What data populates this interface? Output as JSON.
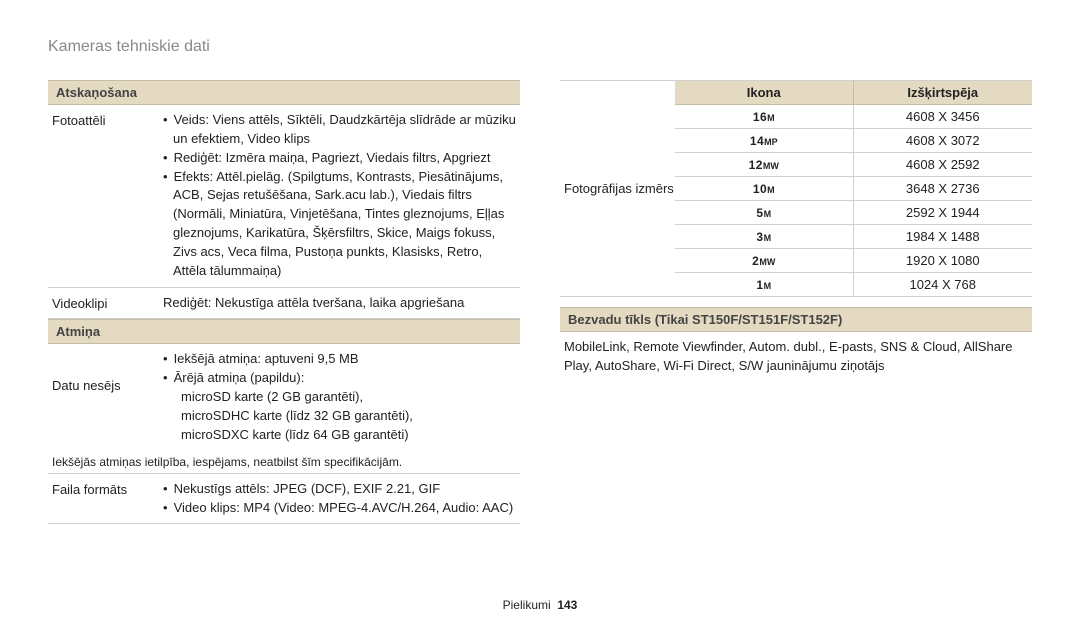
{
  "page_title": "Kameras tehniskie dati",
  "left": {
    "playback_header": "Atskaņošana",
    "foto_label": "Fotoattēli",
    "foto_b1": "Veids: Viens attēls, Sīktēli, Daudzkārtēja slīdrāde ar mūziku un efektiem, Video klips",
    "foto_b2": "Rediģēt: Izmēra maiņa, Pagriezt, Viedais filtrs, Apgriezt",
    "foto_b3": "Efekts: Attēl.pielāg. (Spilgtums, Kontrasts, Piesātinājums, ACB, Sejas retušēšana, Sark.acu lab.), Viedais filtrs (Normāli, Miniatūra, Vinjetēšana, Tintes gleznojums, Eļļas gleznojums, Karikatūra, Šķērsfiltrs, Skice, Maigs fokuss, Zivs acs, Veca filma, Pustoņa punkts, Klasisks, Retro, Attēla tālummaiņa)",
    "video_label": "Videoklipi",
    "video_val": "Rediģēt: Nekustīga attēla tveršana, laika apgriešana",
    "memory_header": "Atmiņa",
    "datu_label": "Datu nesējs",
    "datu_b1": "Iekšējā atmiņa: aptuveni 9,5 MB",
    "datu_b2": "Ārējā atmiņa (papildu):",
    "datu_i1": "microSD karte (2 GB garantēti),",
    "datu_i2": "microSDHC karte (līdz 32 GB garantēti),",
    "datu_i3": "microSDXC karte (līdz 64 GB garantēti)",
    "datu_note": "Iekšējās atmiņas ietilpība, iespējams, neatbilst šīm specifikācijām.",
    "faila_label": "Faila formāts",
    "faila_b1": "Nekustīgs attēls: JPEG (DCF), EXIF 2.21, GIF",
    "faila_b2": "Video klips: MP4 (Video: MPEG-4.AVC/H.264, Audio: AAC)"
  },
  "right": {
    "size_label": "Fotogrāfijas izmērs",
    "th_icon": "Ikona",
    "th_res": "Izšķirtspēja",
    "rows": [
      {
        "n": "16",
        "s": "M",
        "res": "4608 X 3456"
      },
      {
        "n": "14",
        "s": "MP",
        "res": "4608 X 3072"
      },
      {
        "n": "12",
        "s": "MW",
        "res": "4608 X 2592"
      },
      {
        "n": "10",
        "s": "M",
        "res": "3648 X 2736"
      },
      {
        "n": "5",
        "s": "M",
        "res": "2592 X 1944"
      },
      {
        "n": "3",
        "s": "M",
        "res": "1984 X 1488"
      },
      {
        "n": "2",
        "s": "MW",
        "res": "1920 X 1080"
      },
      {
        "n": "1",
        "s": "M",
        "res": "1024 X 768"
      }
    ],
    "wireless_header": "Bezvadu tīkls (Tikai ST150F/ST151F/ST152F)",
    "wireless_text": "MobileLink, Remote Viewfinder, Autom. dubl., E-pasts, SNS & Cloud, AllShare Play, AutoShare, Wi-Fi Direct, S/W jauninājumu ziņotājs"
  },
  "footer": {
    "label": "Pielikumi",
    "page": "143"
  }
}
